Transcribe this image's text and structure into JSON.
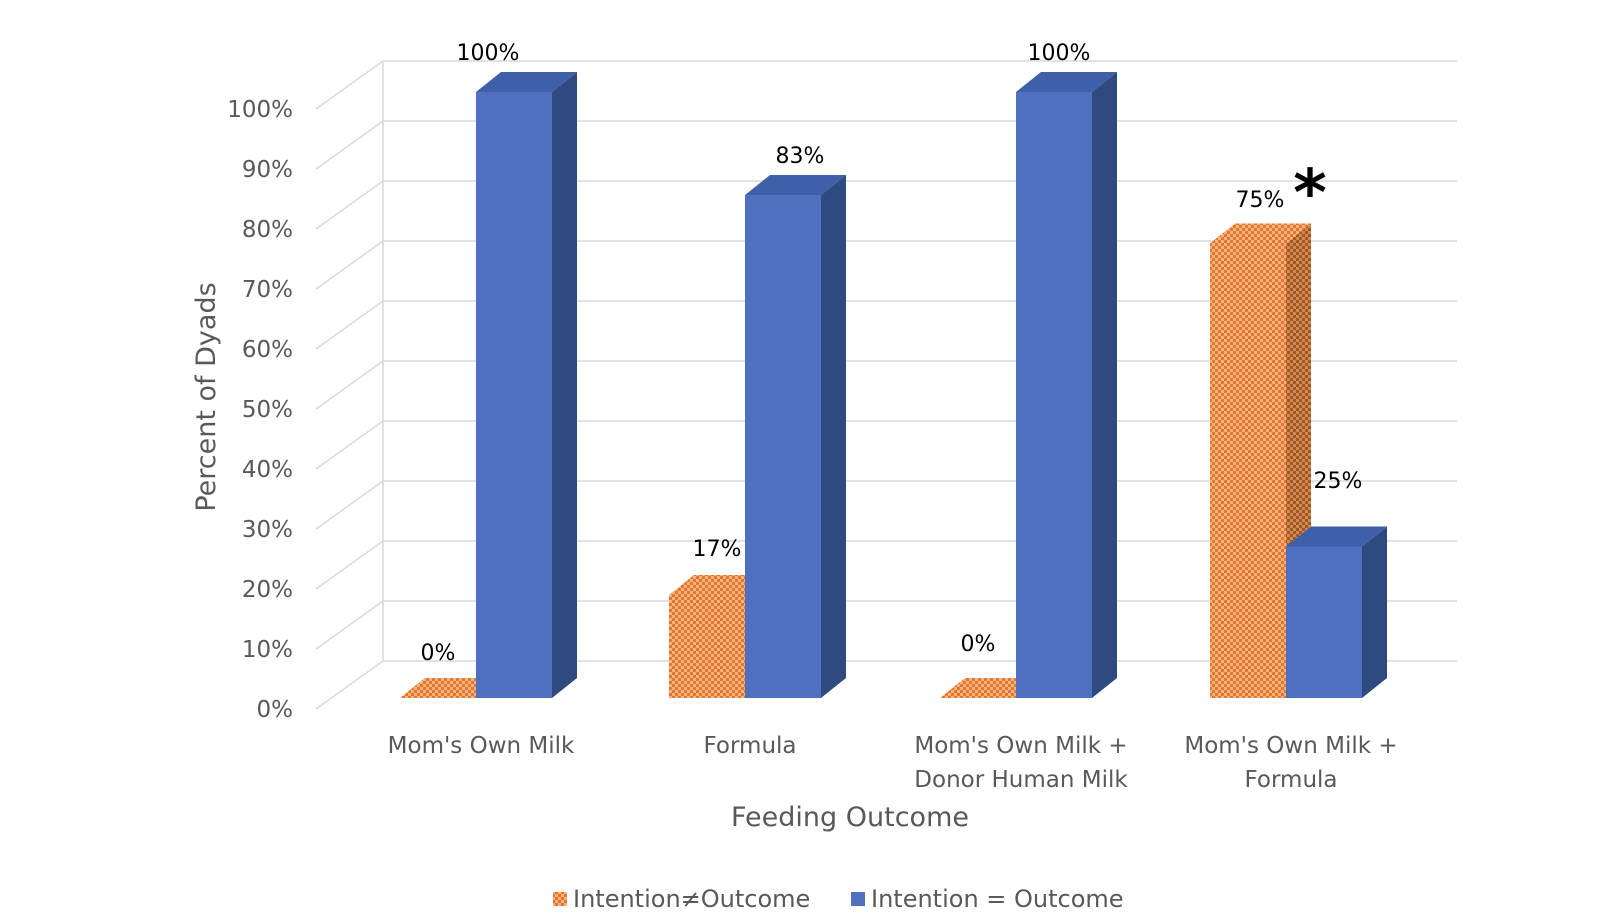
{
  "chart_data": {
    "type": "bar",
    "categories": [
      [
        "Mom's Own Milk"
      ],
      [
        "Formula"
      ],
      [
        "Mom's Own Milk +",
        "Donor Human Milk"
      ],
      [
        "Mom's Own Milk +",
        "Formula"
      ]
    ],
    "series": [
      {
        "name": "Intention≠Outcome",
        "values": [
          0,
          17,
          0,
          75
        ],
        "labels": [
          "0%",
          "17%",
          "0%",
          "75%"
        ],
        "color": "#ED7D31",
        "pattern": "checkered"
      },
      {
        "name": "Intention = Outcome",
        "values": [
          100,
          83,
          100,
          25
        ],
        "labels": [
          "100%",
          "83%",
          "100%",
          "25%"
        ],
        "color": "#4F6FC1"
      }
    ],
    "ylabel": "Percent of Dyads",
    "xlabel": "Feeding Outcome",
    "ylim": [
      0,
      100
    ],
    "yticks": [
      "0%",
      "10%",
      "20%",
      "30%",
      "40%",
      "50%",
      "60%",
      "70%",
      "80%",
      "90%",
      "100%"
    ],
    "grid": true,
    "style": "3d-clustered-column",
    "legend_position": "bottom",
    "annotation": "*"
  }
}
